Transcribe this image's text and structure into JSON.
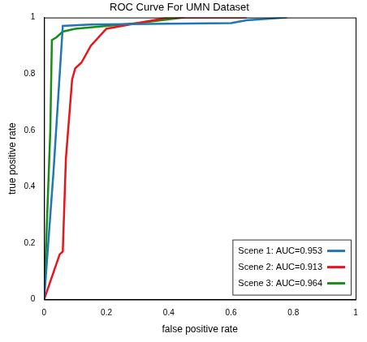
{
  "chart_data": {
    "type": "line",
    "title": "ROC Curve For UMN Dataset",
    "x_label": "false positive rate",
    "y_label": "true positive rate",
    "xlim": [
      0,
      1
    ],
    "ylim": [
      0,
      1
    ],
    "xticks": [
      0,
      0.2,
      0.4,
      0.6,
      0.8,
      1
    ],
    "yticks": [
      0,
      0.2,
      0.4,
      0.6,
      0.8,
      1
    ],
    "grid": false,
    "legend": "lower right",
    "series": [
      {
        "name": "Scene 1: AUC=0.953",
        "color": "#1f77b4",
        "x": [
          0,
          0.03,
          0.06,
          0.15,
          0.4,
          0.6,
          0.65,
          0.78
        ],
        "values": [
          0,
          0.45,
          0.97,
          0.975,
          0.978,
          0.98,
          0.99,
          1
        ]
      },
      {
        "name": "Scene 2: AUC=0.913",
        "color": "#e8161b",
        "x": [
          0,
          0.05,
          0.06,
          0.07,
          0.09,
          0.1,
          0.12,
          0.15,
          0.2,
          0.3,
          0.4,
          0.65
        ],
        "values": [
          0,
          0.16,
          0.17,
          0.5,
          0.78,
          0.82,
          0.84,
          0.9,
          0.96,
          0.98,
          1,
          1
        ]
      },
      {
        "name": "Scene 3: AUC=0.964",
        "color": "#1a8c1a",
        "x": [
          0,
          0.01,
          0.02,
          0.025,
          0.04,
          0.06,
          0.1,
          0.2,
          0.3,
          0.45
        ],
        "values": [
          0,
          0.3,
          0.6,
          0.92,
          0.93,
          0.95,
          0.96,
          0.97,
          0.98,
          1
        ]
      }
    ]
  }
}
